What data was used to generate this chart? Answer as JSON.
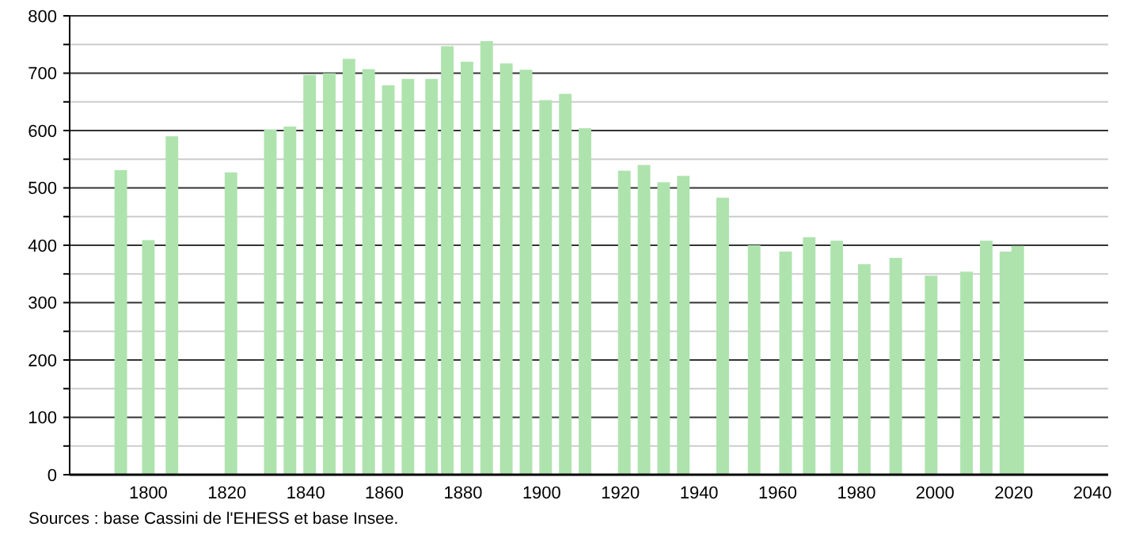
{
  "chart_data": {
    "type": "bar",
    "x": [
      1793,
      1800,
      1806,
      1821,
      1831,
      1836,
      1841,
      1846,
      1851,
      1856,
      1861,
      1866,
      1872,
      1876,
      1881,
      1886,
      1891,
      1896,
      1901,
      1906,
      1911,
      1921,
      1926,
      1931,
      1936,
      1946,
      1954,
      1962,
      1968,
      1975,
      1982,
      1990,
      1999,
      2008,
      2013,
      2018,
      2021
    ],
    "values": [
      531,
      409,
      590,
      527,
      602,
      607,
      697,
      700,
      725,
      707,
      679,
      690,
      690,
      747,
      720,
      756,
      717,
      706,
      653,
      664,
      604,
      530,
      540,
      510,
      521,
      483,
      400,
      389,
      414,
      408,
      367,
      378,
      347,
      354,
      408,
      389,
      399
    ],
    "color": "#aee3ae",
    "xlim": [
      1780,
      2044
    ],
    "xticks": [
      1800,
      1820,
      1840,
      1860,
      1880,
      1900,
      1920,
      1940,
      1960,
      1980,
      2000,
      2020,
      2040
    ],
    "ylim": [
      0,
      800
    ],
    "yticks": [
      0,
      {
        "value": 50,
        "label": null
      },
      100,
      {
        "value": 150,
        "label": null
      },
      200,
      {
        "value": 250,
        "label": null
      },
      300,
      {
        "value": 350,
        "label": null
      },
      400,
      {
        "value": 450,
        "label": null
      },
      500,
      {
        "value": 550,
        "label": null
      },
      600,
      {
        "value": 650,
        "label": null
      },
      700,
      {
        "value": 750,
        "label": null
      },
      800
    ],
    "grid": true,
    "annotations": [
      "Sources : base Cassini de l'EHESS et base Insee."
    ]
  }
}
